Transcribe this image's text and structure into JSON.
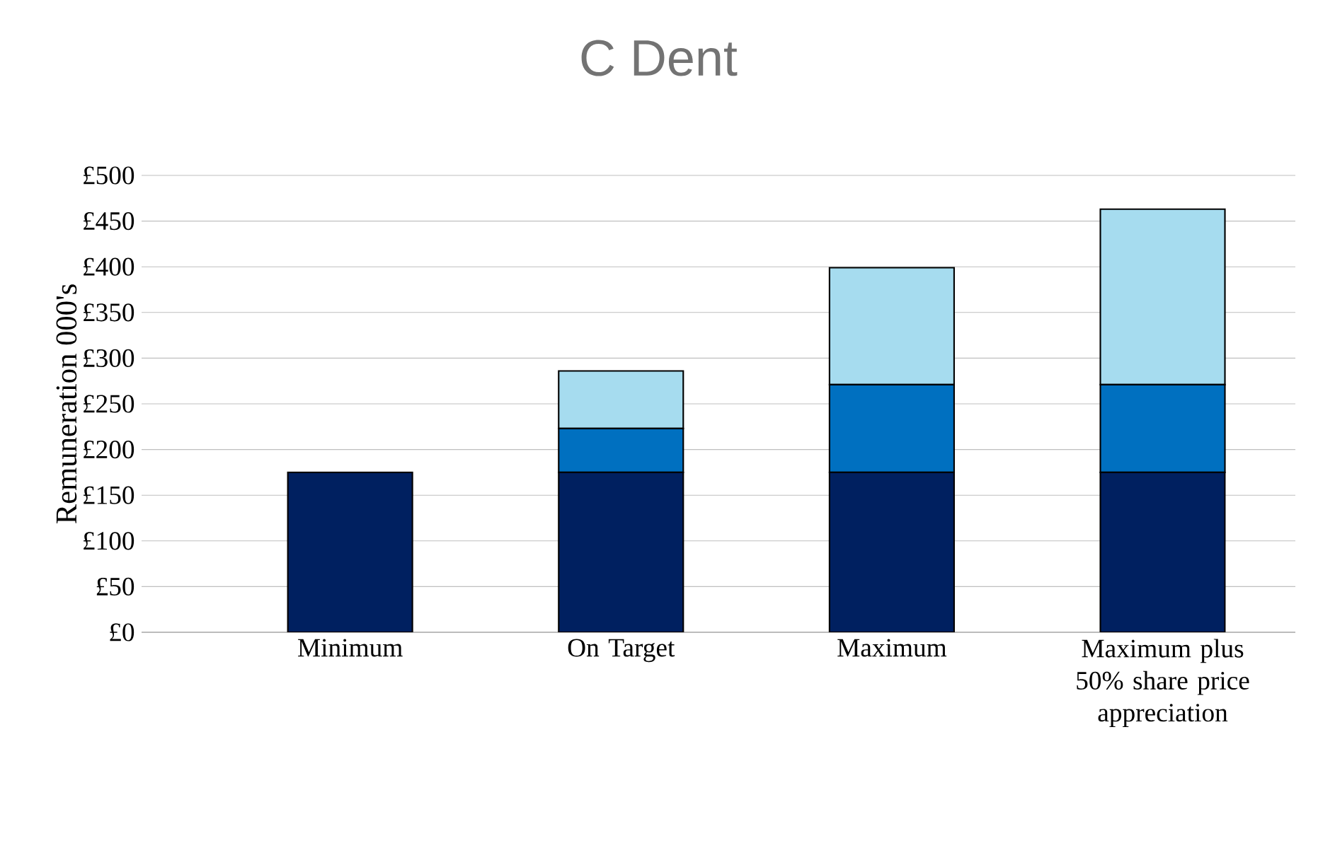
{
  "chart_data": {
    "type": "bar",
    "title": "C Dent",
    "ylabel": "Remuneration 000's",
    "stacked": true,
    "grid": "y",
    "categories": [
      "Minimum",
      "On Target",
      "Maximum",
      "Maximum plus 50% share price appreciation"
    ],
    "series": [
      {
        "color": "#002060",
        "values": [
          175,
          175,
          175,
          175
        ]
      },
      {
        "color": "#0070c0",
        "values": [
          0,
          48,
          96,
          96
        ]
      },
      {
        "color": "#a6dcef",
        "values": [
          0,
          63,
          128,
          192
        ]
      }
    ],
    "ylim": [
      0,
      500
    ],
    "yticks": [
      {
        "value": 0,
        "label": "£0"
      },
      {
        "value": 50,
        "label": "£50"
      },
      {
        "value": 100,
        "label": "£100"
      },
      {
        "value": 150,
        "label": "£150"
      },
      {
        "value": 200,
        "label": "£200"
      },
      {
        "value": 250,
        "label": "£250"
      },
      {
        "value": 300,
        "label": "£300"
      },
      {
        "value": 350,
        "label": "£350"
      },
      {
        "value": 400,
        "label": "£400"
      },
      {
        "value": 450,
        "label": "£450"
      },
      {
        "value": 500,
        "label": "£500"
      }
    ]
  }
}
